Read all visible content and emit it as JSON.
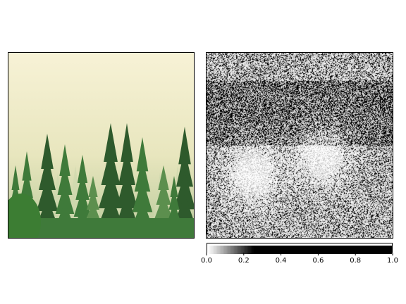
{
  "chart_data": [
    {
      "type": "image",
      "panel": "left",
      "content": "photo",
      "colors": {
        "fog_top": "#f7f2d6",
        "fog_mid": "#e8e6be",
        "tree_dark": "#2e5a2c",
        "tree_mid": "#3f7a3a",
        "tree_light": "#5c8f4e"
      }
    },
    {
      "type": "heatmap",
      "panel": "right",
      "colormap": "gray_r",
      "colorbar": {
        "orientation": "horizontal",
        "placement": "bottom",
        "range": [
          0.0,
          1.0
        ],
        "ticks": [
          "0.0",
          "0.2",
          "0.4",
          "0.6",
          "0.8",
          "1.0"
        ]
      }
    }
  ]
}
